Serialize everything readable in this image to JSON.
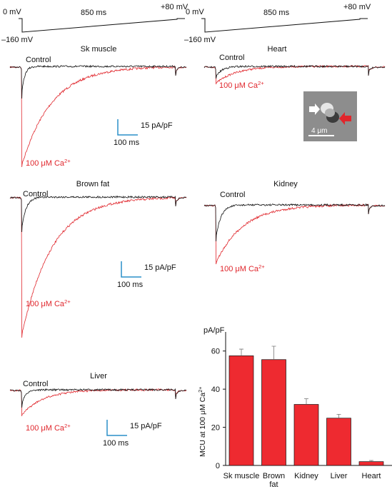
{
  "protocol": {
    "hold_label": "0 mV",
    "step_label": "–160 mV",
    "duration_label": "850 ms",
    "end_label": "+80 mV"
  },
  "panels": {
    "sk_muscle": {
      "title": "Sk muscle",
      "control_label": "Control",
      "ca_label": "100 μM Ca",
      "ca_sup": "2+"
    },
    "heart": {
      "title": "Heart",
      "control_label": "Control",
      "ca_label": "100 μM Ca",
      "ca_sup": "2+"
    },
    "brown_fat": {
      "title": "Brown fat",
      "control_label": "Control",
      "ca_label": "100 μM Ca",
      "ca_sup": "2+"
    },
    "kidney": {
      "title": "Kidney",
      "control_label": "Control",
      "ca_label": "100 μM Ca",
      "ca_sup": "2+"
    },
    "liver": {
      "title": "Liver",
      "control_label": "Control",
      "ca_label": "100 μM Ca",
      "ca_sup": "2+"
    }
  },
  "scalebar": {
    "current_label": "15 pA/pF",
    "time_label": "100 ms"
  },
  "inset": {
    "scale_label": "4 μm"
  },
  "colors": {
    "control": "#111111",
    "calcium": "#e0262c",
    "scalebar": "#2a8fc9",
    "bar": "#ee2a30"
  },
  "chart_data": {
    "type": "bar",
    "categories": [
      "Sk muscle",
      "Brown fat",
      "Kidney",
      "Liver",
      "Heart"
    ],
    "category_lines": [
      [
        "Sk muscle"
      ],
      [
        "Brown",
        "fat"
      ],
      [
        "Kidney"
      ],
      [
        "Liver"
      ],
      [
        "Heart"
      ]
    ],
    "values": [
      57.5,
      55.5,
      32,
      24.8,
      2
    ],
    "errors": [
      3.5,
      7,
      3,
      2,
      0.6
    ],
    "ylabel": "MCU at 100 μM Ca",
    "ylabel_sup": "2+",
    "yunit": "pA/pF",
    "ylim": [
      0,
      70
    ],
    "yticks": [
      0,
      20,
      40,
      60
    ],
    "grid": false
  }
}
